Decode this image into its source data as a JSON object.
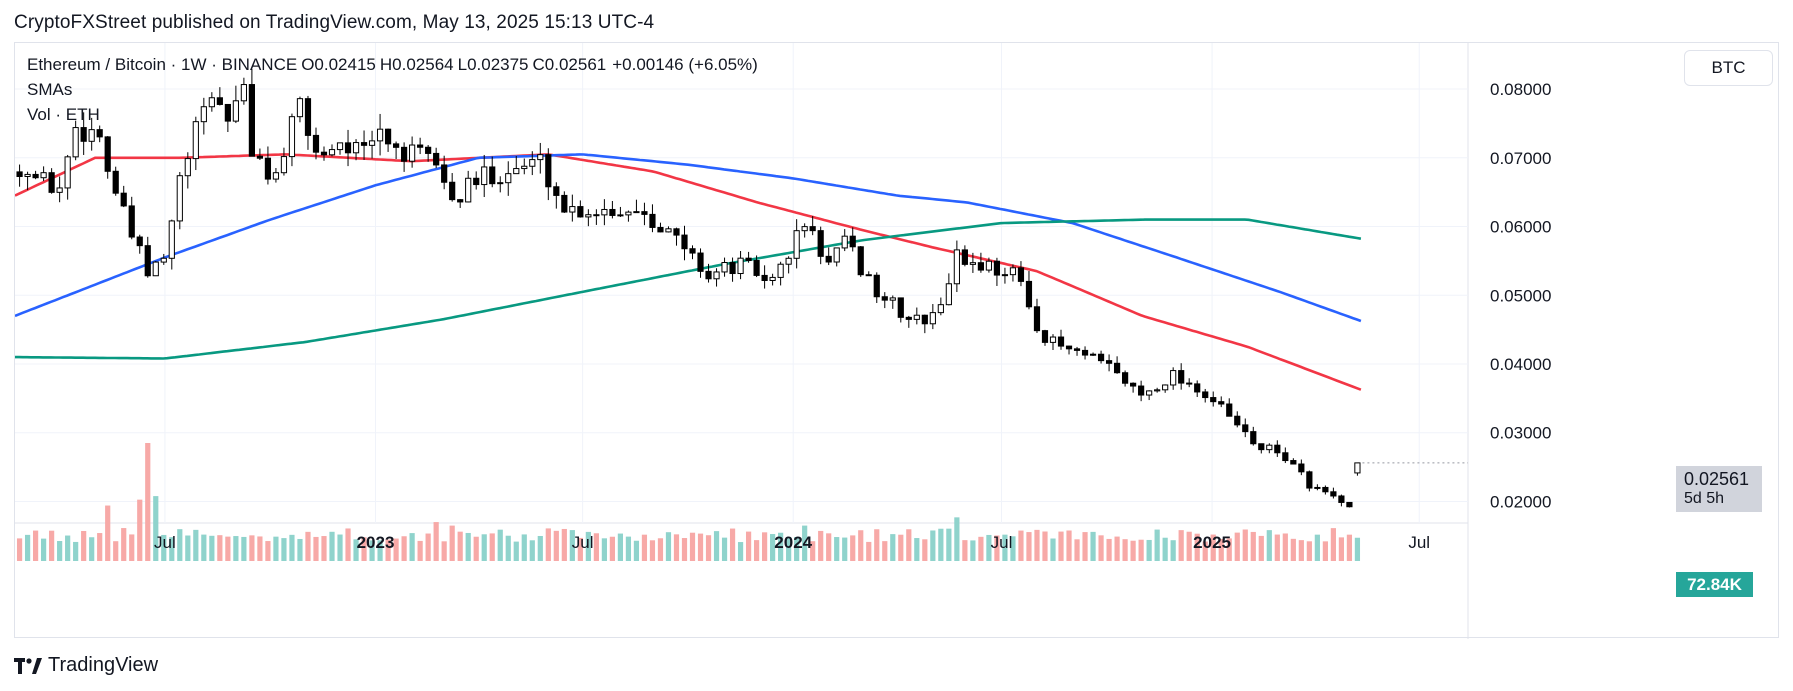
{
  "header": {
    "publisher_line": "CryptoFXStreet published on TradingView.com, May 13, 2025 15:13 UTC-4"
  },
  "legend": {
    "symbol_line": "Ethereum / Bitcoin · 1W · BINANCE",
    "open": "O0.02415",
    "high": "H0.02564",
    "low": "L0.02375",
    "close": "C0.02561",
    "change": "+0.00146 (+6.05%)",
    "sma_label": "SMAs",
    "vol_label": "Vol · ETH"
  },
  "currency_button": "BTC",
  "price_badge": {
    "price": "0.02561",
    "countdown": "5d 5h"
  },
  "volume_badge": "72.84K",
  "footer": {
    "brand": "TradingView"
  },
  "colors": {
    "bull_candle": "#ffffff",
    "bear_candle": "#000000",
    "candle_border": "#000000",
    "sma_fast": "#f23645",
    "sma_mid": "#2962ff",
    "sma_slow": "#089981",
    "volume_up": "#8fd3cc",
    "volume_down": "#f7a9a7"
  },
  "chart_data": {
    "type": "candlestick",
    "timeframe": "1W",
    "y_axis": {
      "ticks": [
        "0.08000",
        "0.07000",
        "0.06000",
        "0.05000",
        "0.04000",
        "0.03000",
        "0.02000"
      ],
      "range": [
        0.0125,
        0.0867
      ]
    },
    "x_axis": {
      "ticks": [
        {
          "label": "Jul",
          "date": "2022-07-01",
          "bold": false
        },
        {
          "label": "2023",
          "date": "2023-01-01",
          "bold": true
        },
        {
          "label": "Jul",
          "date": "2023-07-01",
          "bold": false
        },
        {
          "label": "2024",
          "date": "2024-01-01",
          "bold": true
        },
        {
          "label": "Jul",
          "date": "2024-07-01",
          "bold": false
        },
        {
          "label": "2025",
          "date": "2025-01-01",
          "bold": true
        },
        {
          "label": "Jul",
          "date": "2025-07-01",
          "bold": false
        }
      ],
      "range": [
        "2022-02-20",
        "2025-08-10"
      ]
    },
    "price_anchors": [
      [
        "2022-02-24",
        0.069
      ],
      [
        "2022-03-10",
        0.067
      ],
      [
        "2022-03-31",
        0.0655
      ],
      [
        "2022-04-14",
        0.0745
      ],
      [
        "2022-05-05",
        0.0735
      ],
      [
        "2022-05-12",
        0.0685
      ],
      [
        "2022-05-26",
        0.0615
      ],
      [
        "2022-06-16",
        0.053
      ],
      [
        "2022-06-30",
        0.055
      ],
      [
        "2022-07-14",
        0.0665
      ],
      [
        "2022-07-28",
        0.0735
      ],
      [
        "2022-08-11",
        0.0795
      ],
      [
        "2022-08-25",
        0.0755
      ],
      [
        "2022-09-08",
        0.0815
      ],
      [
        "2022-09-15",
        0.0695
      ],
      [
        "2022-10-06",
        0.0675
      ],
      [
        "2022-10-27",
        0.0775
      ],
      [
        "2022-11-10",
        0.0705
      ],
      [
        "2022-12-01",
        0.0725
      ],
      [
        "2022-12-22",
        0.0705
      ],
      [
        "2023-01-05",
        0.0735
      ],
      [
        "2023-01-26",
        0.0705
      ],
      [
        "2023-02-23",
        0.0695
      ],
      [
        "2023-03-09",
        0.0635
      ],
      [
        "2023-04-06",
        0.0675
      ],
      [
        "2023-05-04",
        0.0685
      ],
      [
        "2023-05-25",
        0.0695
      ],
      [
        "2023-06-15",
        0.0625
      ],
      [
        "2023-07-20",
        0.0625
      ],
      [
        "2023-08-24",
        0.0625
      ],
      [
        "2023-09-21",
        0.058
      ],
      [
        "2023-10-19",
        0.053
      ],
      [
        "2023-11-16",
        0.0545
      ],
      [
        "2023-12-14",
        0.052
      ],
      [
        "2024-01-11",
        0.0605
      ],
      [
        "2024-02-01",
        0.0545
      ],
      [
        "2024-02-15",
        0.0575
      ],
      [
        "2024-03-14",
        0.0505
      ],
      [
        "2024-04-11",
        0.0465
      ],
      [
        "2024-05-02",
        0.0465
      ],
      [
        "2024-05-23",
        0.0555
      ],
      [
        "2024-06-13",
        0.0545
      ],
      [
        "2024-07-11",
        0.0535
      ],
      [
        "2024-08-08",
        0.0435
      ],
      [
        "2024-09-05",
        0.0415
      ],
      [
        "2024-10-03",
        0.0395
      ],
      [
        "2024-10-31",
        0.0355
      ],
      [
        "2024-11-28",
        0.0385
      ],
      [
        "2024-12-19",
        0.0365
      ],
      [
        "2025-01-09",
        0.0335
      ],
      [
        "2025-02-06",
        0.0285
      ],
      [
        "2025-03-06",
        0.0265
      ],
      [
        "2025-03-27",
        0.0225
      ],
      [
        "2025-04-17",
        0.0205
      ],
      [
        "2025-05-01",
        0.0188
      ],
      [
        "2025-05-08",
        0.0241
      ],
      [
        "2025-05-12",
        0.02561
      ]
    ],
    "sma_series": [
      {
        "role": "fast",
        "points": [
          [
            "2022-02-20",
            0.0645
          ],
          [
            "2022-05-01",
            0.07
          ],
          [
            "2022-07-15",
            0.07
          ],
          [
            "2022-10-15",
            0.0705
          ],
          [
            "2023-02-01",
            0.0695
          ],
          [
            "2023-06-01",
            0.0705
          ],
          [
            "2023-09-01",
            0.068
          ],
          [
            "2023-12-01",
            0.0635
          ],
          [
            "2024-03-01",
            0.0595
          ],
          [
            "2024-05-01",
            0.057
          ],
          [
            "2024-08-01",
            0.0535
          ],
          [
            "2024-11-01",
            0.047
          ],
          [
            "2025-02-01",
            0.0425
          ],
          [
            "2025-05-12",
            0.0362
          ]
        ]
      },
      {
        "role": "mid",
        "points": [
          [
            "2022-02-20",
            0.047
          ],
          [
            "2022-07-01",
            0.0555
          ],
          [
            "2022-10-01",
            0.061
          ],
          [
            "2023-01-01",
            0.066
          ],
          [
            "2023-04-01",
            0.07
          ],
          [
            "2023-07-01",
            0.0705
          ],
          [
            "2023-10-01",
            0.069
          ],
          [
            "2024-01-01",
            0.067
          ],
          [
            "2024-04-01",
            0.0645
          ],
          [
            "2024-06-01",
            0.0635
          ],
          [
            "2024-09-01",
            0.0605
          ],
          [
            "2024-12-01",
            0.0555
          ],
          [
            "2025-03-01",
            0.0505
          ],
          [
            "2025-05-12",
            0.0462
          ]
        ]
      },
      {
        "role": "slow",
        "points": [
          [
            "2022-02-20",
            0.041
          ],
          [
            "2022-07-01",
            0.0408
          ],
          [
            "2022-11-01",
            0.0432
          ],
          [
            "2023-03-01",
            0.0465
          ],
          [
            "2023-07-01",
            0.0505
          ],
          [
            "2023-11-01",
            0.0545
          ],
          [
            "2024-03-01",
            0.058
          ],
          [
            "2024-07-01",
            0.0605
          ],
          [
            "2024-11-01",
            0.061
          ],
          [
            "2025-02-01",
            0.061
          ],
          [
            "2025-05-12",
            0.0582
          ]
        ]
      }
    ],
    "volume_spikes": [
      [
        "2022-06-16",
        1.0
      ],
      [
        "2022-06-09",
        0.52
      ],
      [
        "2022-06-23",
        0.55
      ],
      [
        "2022-05-12",
        0.47
      ],
      [
        "2023-03-09",
        0.3
      ],
      [
        "2023-02-23",
        0.33
      ],
      [
        "2024-01-11",
        0.3
      ],
      [
        "2024-05-23",
        0.37
      ],
      [
        "2024-08-08",
        0.25
      ]
    ]
  }
}
